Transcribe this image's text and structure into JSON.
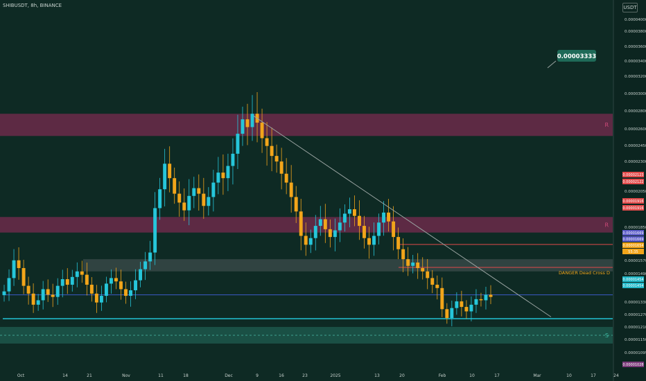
{
  "header": {
    "symbol_label": "SHIBUSDT, 8h, BINANCE",
    "currency": "USDT"
  },
  "annotations": {
    "callout": "0.00003333",
    "resistance_label": "R",
    "support_label": "S",
    "danger_label": "DANGER Dead Cross D"
  },
  "colors": {
    "background": "#0e2a24",
    "candle": "#f2a51a",
    "candle_alt": "#26c6da",
    "resistance_zone": "#6b2a4a",
    "support_zone": "#1e5a4e",
    "sr_zone_grey": "#3a4a48",
    "red_line": "#e24a4a",
    "blue_line": "#3b5bc8",
    "cyan_line": "#21b8c8",
    "trend_line": "#9aa4a2"
  },
  "chart_data": {
    "type": "candlestick",
    "x_tick_labels": [
      "Oct",
      "14",
      "21",
      "Nov",
      "11",
      "18",
      "Dec",
      "9",
      "16",
      "23",
      "2025",
      "13",
      "20",
      "Feb",
      "10",
      "17",
      "Mar",
      "10",
      "17",
      "24"
    ],
    "y_tick_labels": [
      "0.00004000",
      "0.00003800",
      "0.00003600",
      "0.00003400",
      "0.00003200",
      "0.00003000",
      "0.00002800",
      "0.00002600",
      "0.00002450",
      "0.00002300",
      "0.00002050",
      "0.00001850",
      "0.00001570",
      "0.00001490",
      "0.00001330",
      "0.00001270",
      "0.00001210",
      "0.00001150",
      "0.00001095"
    ],
    "price_tags": [
      {
        "text": "0.00002123",
        "color": "#e24a4a"
      },
      {
        "text": "0.00002122",
        "color": "#e24a4a"
      },
      {
        "text": "0.00001916",
        "color": "#e24a4a"
      },
      {
        "text": "0.00001916",
        "color": "#e24a4a"
      },
      {
        "text": "0.00001669",
        "color": "#5b5bc8"
      },
      {
        "text": "0.00001669",
        "color": "#5b5bc8"
      },
      {
        "text": "0.00001654",
        "color": "#f2a51a"
      },
      {
        "text": "55:35",
        "color": "#f2a51a"
      },
      {
        "text": "0.00001454",
        "color": "#21b8c8"
      },
      {
        "text": "0.00001454",
        "color": "#21b8c8"
      },
      {
        "text": "0.00001028",
        "color": "#7a3a7a"
      }
    ],
    "resistance_zones": [
      [
        3.1e-05,
        3.3e-05
      ],
      [
        2.23e-05,
        2.37e-05
      ]
    ],
    "grey_zone": [
      1.88e-05,
      1.99e-05
    ],
    "support_zone": [
      1.23e-05,
      1.38e-05
    ],
    "horizontal_lines": [
      {
        "value": 2.123e-05,
        "color": "red"
      },
      {
        "value": 1.916e-05,
        "color": "red"
      },
      {
        "value": 1.669e-05,
        "color": "blue"
      },
      {
        "value": 1.454e-05,
        "color": "cyan"
      }
    ],
    "trend_line": [
      [
        "2024-12-09",
        3.28e-05
      ],
      [
        "2025-02-24",
        1.47e-05
      ]
    ],
    "candles_close": [
      1.7e-05,
      1.82e-05,
      1.98e-05,
      1.91e-05,
      1.75e-05,
      1.68e-05,
      1.58e-05,
      1.62e-05,
      1.72e-05,
      1.67e-05,
      1.65e-05,
      1.75e-05,
      1.81e-05,
      1.76e-05,
      1.83e-05,
      1.88e-05,
      1.85e-05,
      1.76e-05,
      1.68e-05,
      1.6e-05,
      1.66e-05,
      1.77e-05,
      1.82e-05,
      1.79e-05,
      1.72e-05,
      1.66e-05,
      1.71e-05,
      1.8e-05,
      1.9e-05,
      1.97e-05,
      2.05e-05,
      2.45e-05,
      2.62e-05,
      2.85e-05,
      2.72e-05,
      2.58e-05,
      2.5e-05,
      2.43e-05,
      2.56e-05,
      2.63e-05,
      2.58e-05,
      2.47e-05,
      2.55e-05,
      2.68e-05,
      2.77e-05,
      2.72e-05,
      2.83e-05,
      2.94e-05,
      3.12e-05,
      3.25e-05,
      3.18e-05,
      3.3e-05,
      3.22e-05,
      3.08e-05,
      3.01e-05,
      2.92e-05,
      2.87e-05,
      2.76e-05,
      2.68e-05,
      2.55e-05,
      2.42e-05,
      2.2e-05,
      2.12e-05,
      2.18e-05,
      2.29e-05,
      2.35e-05,
      2.26e-05,
      2.19e-05,
      2.25e-05,
      2.32e-05,
      2.4e-05,
      2.44e-05,
      2.38e-05,
      2.29e-05,
      2.18e-05,
      2.12e-05,
      2.2e-05,
      2.32e-05,
      2.41e-05,
      2.33e-05,
      2.19e-05,
      2.08e-05,
      1.99e-05,
      1.93e-05,
      1.96e-05,
      1.91e-05,
      1.88e-05,
      1.82e-05,
      1.76e-05,
      1.73e-05,
      1.54e-05,
      1.46e-05,
      1.55e-05,
      1.61e-05,
      1.56e-05,
      1.52e-05,
      1.58e-05,
      1.63e-05,
      1.62e-05,
      1.67e-05,
      1.65e-05
    ]
  }
}
